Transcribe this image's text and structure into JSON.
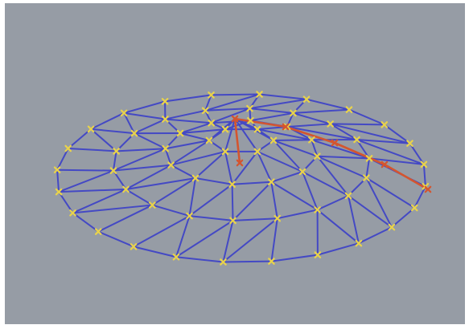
{
  "colors": {
    "background": "#969ca5",
    "frame": "#ffffff",
    "edge": "#4449c4",
    "node": "#e9d34a",
    "highlight": "#d4552f"
  },
  "scene": {
    "type": "dome-wireframe-mesh",
    "node_icon": "cross-marker",
    "highlighted_path": "radial-rib-from-apex"
  }
}
